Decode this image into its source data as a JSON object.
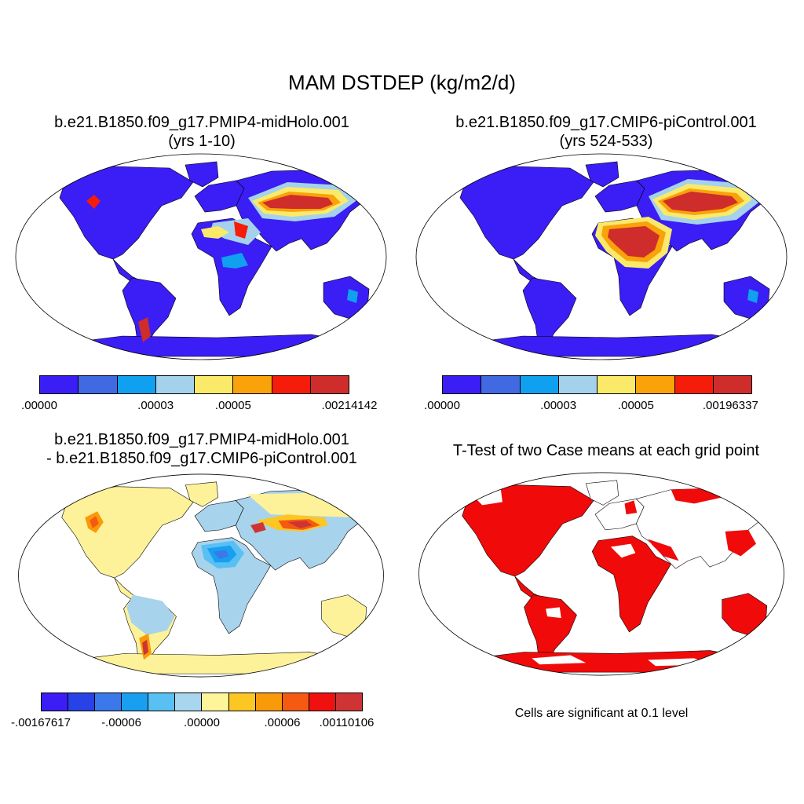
{
  "main_title": "MAM DSTDEP (kg/m2/d)",
  "panels": {
    "top_left": {
      "title_line1": "b.e21.B1850.f09_g17.PMIP4-midHolo.001",
      "title_line2": "(yrs 1-10)",
      "colorbar": {
        "colors": [
          "#3b1df5",
          "#4169e1",
          "#10a0f0",
          "#a4d2ec",
          "#fbe96a",
          "#f9a20a",
          "#f51c0a",
          "#cf2c2c"
        ],
        "labels": [
          ".00000",
          ".00003",
          ".00005",
          ".00214142"
        ]
      }
    },
    "top_right": {
      "title_line1": "b.e21.B1850.f09_g17.CMIP6-piControl.001",
      "title_line2": "(yrs 524-533)",
      "colorbar": {
        "colors": [
          "#3b1df5",
          "#4169e1",
          "#10a0f0",
          "#a4d2ec",
          "#fbe96a",
          "#f9a20a",
          "#f51c0a",
          "#cf2c2c"
        ],
        "labels": [
          ".00000",
          ".00003",
          ".00005",
          ".00196337"
        ]
      }
    },
    "bottom_left": {
      "title_line1": "b.e21.B1850.f09_g17.PMIP4-midHolo.001",
      "title_line2": "- b.e21.B1850.f09_g17.CMIP6-piControl.001",
      "colorbar": {
        "colors": [
          "#3b1df5",
          "#2742e6",
          "#3a78ec",
          "#189ff0",
          "#58c0f3",
          "#a8d6ee",
          "#fef49a",
          "#fcc623",
          "#f99a0a",
          "#f55a12",
          "#f01010",
          "#cf3434"
        ],
        "labels": [
          "-.00167617",
          "-.00006",
          ".00000",
          ".00006",
          ".00110106"
        ]
      }
    },
    "bottom_right": {
      "title": "T-Test of two Case means at each grid point",
      "note": "Cells are significant at 0.1 level"
    }
  },
  "colors": {
    "ocean": "#ffffff",
    "outline": "#000000",
    "significant": "#f00a0a",
    "diff_background": "#fdf29a",
    "diff_negative": "#a8d3ec"
  }
}
